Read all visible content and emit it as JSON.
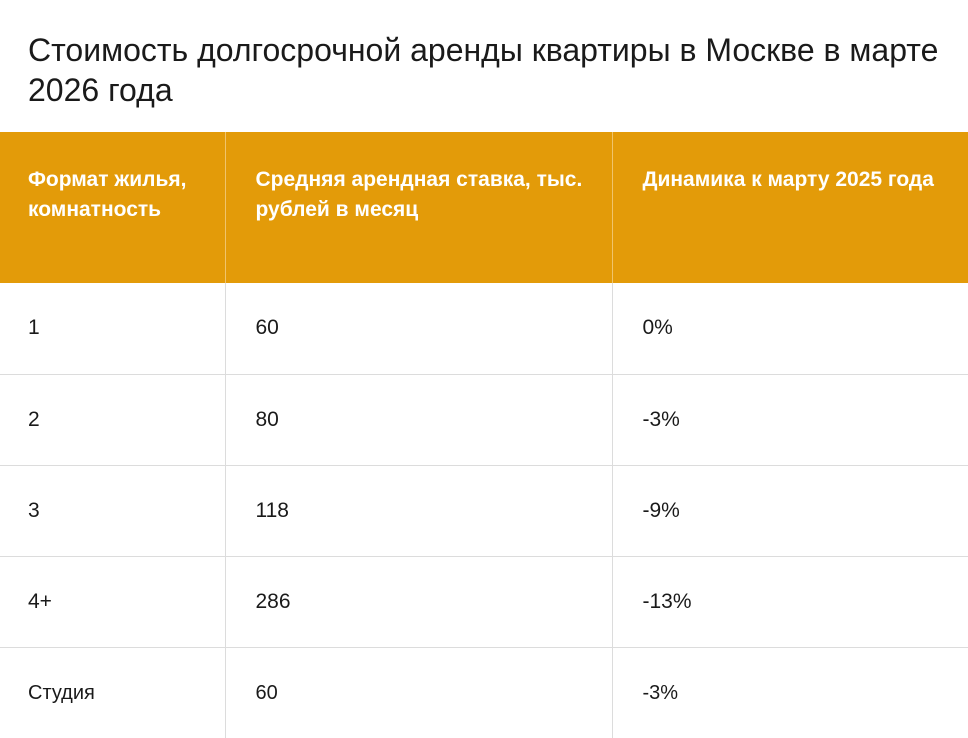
{
  "title": "Стоимость долгосрочной аренды квартиры в Москве в марте 2026 года",
  "accent_color": "#e39b09",
  "chart_data": {
    "type": "table",
    "title": "Стоимость долгосрочной аренды квартиры в Москве в марте 2026 года",
    "columns": [
      "Формат жилья, комнатность",
      "Средняя арендная ставка, тыс. рублей в месяц",
      "Динамика к марту 2025 года"
    ],
    "rows": [
      [
        "1",
        "60",
        "0%"
      ],
      [
        "2",
        "80",
        "-3%"
      ],
      [
        "3",
        "118",
        "-9%"
      ],
      [
        "4+",
        "286",
        "-13%"
      ],
      [
        "Студия",
        "60",
        "-3%"
      ]
    ]
  }
}
